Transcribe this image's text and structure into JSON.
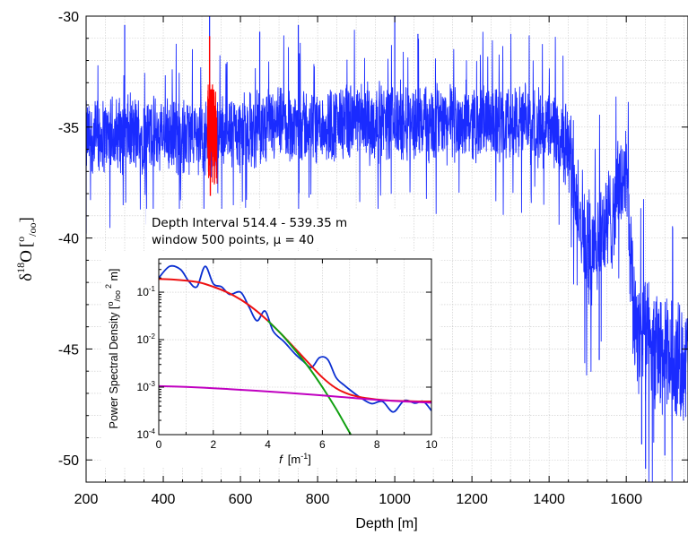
{
  "chart_data": [
    {
      "type": "line",
      "xlabel": "Depth [m]",
      "ylabel": "δ18O [o/oo]",
      "ylabel_parts": {
        "symbol": "δ",
        "sup": "18",
        "element": "O",
        "bracket_open": "[",
        "unit_sup": "o",
        "unit_sub": "/oo",
        "bracket_close": "]"
      },
      "xlim": [
        200,
        1760
      ],
      "ylim": [
        -51,
        -30
      ],
      "x_ticks": [
        "200",
        "400",
        "600",
        "800",
        "1000",
        "1200",
        "1400",
        "1600"
      ],
      "y_ticks": [
        "-30",
        "-35",
        "-40",
        "-45",
        "-50"
      ],
      "grid": true,
      "series": [
        {
          "color": "#1a2bff",
          "x": [
            200,
            300,
            400,
            500,
            600,
            700,
            800,
            900,
            1000,
            1100,
            1200,
            1300,
            1400,
            1450,
            1500,
            1550,
            1600,
            1620,
            1650,
            1700,
            1760
          ],
          "center": [
            -35.5,
            -35.3,
            -35.4,
            -35.4,
            -35.2,
            -35.0,
            -34.9,
            -34.8,
            -34.8,
            -34.8,
            -34.7,
            -34.8,
            -35.0,
            -36.0,
            -40.5,
            -39.5,
            -37.0,
            -43.5,
            -44.5,
            -45.5,
            -45.5
          ],
          "spread": [
            2.0,
            2.0,
            2.0,
            2.0,
            2.0,
            2.0,
            2.0,
            2.0,
            2.0,
            2.0,
            2.0,
            2.0,
            2.0,
            2.4,
            3.0,
            3.0,
            2.6,
            3.5,
            3.2,
            3.2,
            3.0
          ],
          "peaks_high": [
            [
              300,
              -30.4
            ],
            [
              520,
              -30.0
            ],
            [
              650,
              -30.7
            ],
            [
              750,
              -30.4
            ],
            [
              1000,
              -30.0
            ],
            [
              1060,
              -30.8
            ]
          ],
          "peaks_low": [
            [
              200,
              -39.8
            ],
            [
              1530,
              -45.5
            ],
            [
              1640,
              -49.3
            ],
            [
              1650,
              -50.4
            ],
            [
              1700,
              -49.8
            ]
          ]
        },
        {
          "color": "#ff0000",
          "x_range": [
            514.4,
            539.35
          ],
          "center": -35.3,
          "spread": 2.3,
          "peaks_high": [
            [
              520,
              -30.9
            ]
          ],
          "peaks_low": [
            [
              522,
              -38.1
            ]
          ]
        }
      ],
      "annotation": {
        "line1": "Depth Interval 514.4 - 539.35 m",
        "line2": "window 500 points, μ = 40"
      }
    },
    {
      "type": "line",
      "scale": "log-y",
      "xlabel": "f [m-1]",
      "xlabel_parts": {
        "var": "f",
        "unit_open": "[m",
        "unit_sup": "-1",
        "unit_close": "]"
      },
      "ylabel": "Power Spectral Density [o/oo2 m]",
      "ylabel_parts": {
        "text": "Power Spectral Density [",
        "sup": "o",
        "sub": "/oo",
        "sup2": "2",
        "tail": " m]"
      },
      "xlim": [
        0,
        10
      ],
      "ylim": [
        0.0001,
        0.5
      ],
      "x_ticks": [
        "0",
        "2",
        "4",
        "6",
        "8",
        "10"
      ],
      "y_ticks": [
        {
          "value": 0.1,
          "base": "10",
          "exp": "-1"
        },
        {
          "value": 0.01,
          "base": "10",
          "exp": "-2"
        },
        {
          "value": 0.001,
          "base": "10",
          "exp": "-3"
        },
        {
          "value": 0.0001,
          "base": "10",
          "exp": "-4"
        }
      ],
      "grid": true,
      "series": [
        {
          "color": "#0b2fd1",
          "x": [
            0,
            0.4,
            0.8,
            1.1,
            1.4,
            1.7,
            2.0,
            2.3,
            2.6,
            3.0,
            3.3,
            3.6,
            3.9,
            4.2,
            4.6,
            5.0,
            5.3,
            5.6,
            5.9,
            6.2,
            6.5,
            6.8,
            7.1,
            7.4,
            7.8,
            8.2,
            8.6,
            9.0,
            9.4,
            9.7,
            10.0
          ],
          "y": [
            0.2,
            0.35,
            0.3,
            0.17,
            0.13,
            0.35,
            0.15,
            0.13,
            0.09,
            0.1,
            0.05,
            0.025,
            0.04,
            0.015,
            0.009,
            0.005,
            0.0035,
            0.0026,
            0.0042,
            0.0038,
            0.0016,
            0.0011,
            0.0008,
            0.0006,
            0.00045,
            0.0005,
            0.0003,
            0.00052,
            0.00046,
            0.0005,
            0.00032
          ]
        },
        {
          "color": "#ee1111",
          "x": [
            0,
            0.5,
            1,
            1.5,
            2,
            2.5,
            3,
            3.5,
            4,
            4.5,
            5,
            5.5,
            6,
            6.5,
            7,
            7.5,
            8,
            8.5,
            9,
            9.5,
            10
          ],
          "y": [
            0.19,
            0.185,
            0.175,
            0.16,
            0.13,
            0.1,
            0.07,
            0.044,
            0.025,
            0.013,
            0.0065,
            0.0032,
            0.0016,
            0.00095,
            0.0007,
            0.0006,
            0.00055,
            0.00052,
            0.00051,
            0.0005,
            0.0005
          ]
        },
        {
          "color": "#11a011",
          "x": [
            4,
            4.5,
            5,
            5.5,
            6,
            6.5,
            7,
            7.2
          ],
          "y": [
            0.025,
            0.013,
            0.006,
            0.0026,
            0.001,
            0.00035,
            0.00011,
            7e-05
          ]
        },
        {
          "color": "#c000c0",
          "x": [
            0,
            1,
            2,
            3,
            4,
            5,
            6,
            7,
            8,
            9,
            10
          ],
          "y": [
            0.00105,
            0.00101,
            0.00095,
            0.00088,
            0.00081,
            0.00074,
            0.00067,
            0.0006,
            0.00054,
            0.0005,
            0.00047
          ]
        }
      ]
    }
  ]
}
